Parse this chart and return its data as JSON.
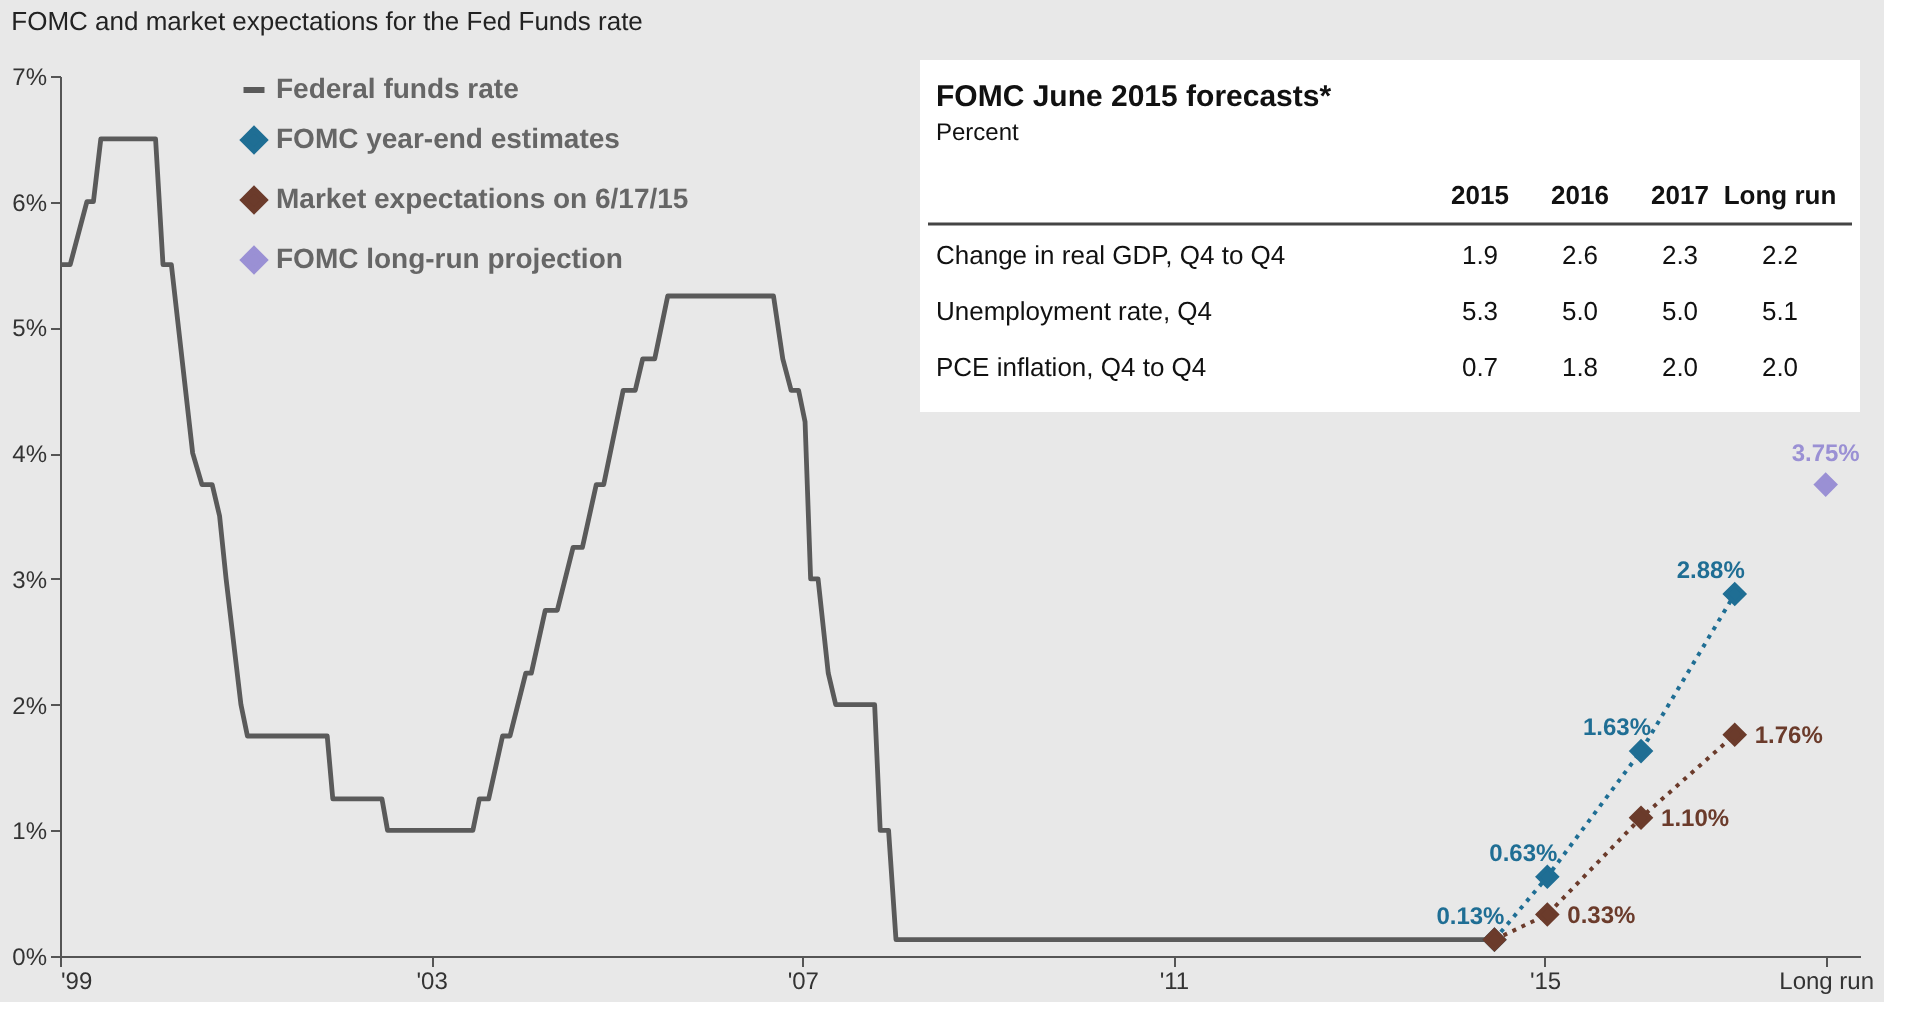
{
  "chart_data": {
    "type": "line",
    "title": "FOMC and market expectations for the Fed Funds rate",
    "x": [
      1999.0,
      1999.11,
      1999.29,
      1999.36,
      1999.44,
      2000.03,
      2000.11,
      2000.2,
      2000.43,
      2000.53,
      2000.64,
      2000.72,
      2000.79,
      2000.95,
      2001.02,
      2001.88,
      2001.94,
      2002.47,
      2002.53,
      2003.45,
      2003.52,
      2003.62,
      2003.77,
      2003.85,
      2004.02,
      2004.08,
      2004.23,
      2004.36,
      2004.53,
      2004.63,
      2004.78,
      2004.86,
      2005.07,
      2005.2,
      2005.28,
      2005.41,
      2005.55,
      2006.69,
      2006.79,
      2006.88,
      2006.96,
      2007.03,
      2007.09,
      2007.17,
      2007.28,
      2007.36,
      2007.78,
      2007.84,
      2007.93,
      2008.01,
      2014.46
    ],
    "series": [
      {
        "name": "Federal funds rate",
        "color": "#5a5a5a",
        "marker": "none",
        "line_style": "solid",
        "values": [
          5.5,
          5.5,
          6.0,
          6.0,
          6.5,
          6.5,
          5.5,
          5.5,
          4.0,
          3.75,
          3.75,
          3.5,
          3.0,
          2.0,
          1.75,
          1.75,
          1.25,
          1.25,
          1.0,
          1.0,
          1.25,
          1.25,
          1.75,
          1.75,
          2.25,
          2.25,
          2.75,
          2.75,
          3.25,
          3.25,
          3.75,
          3.75,
          4.5,
          4.5,
          4.75,
          4.75,
          5.25,
          5.25,
          4.75,
          4.5,
          4.5,
          4.25,
          3.0,
          3.0,
          2.25,
          2.0,
          2.0,
          1.0,
          1.0,
          0.13,
          0.13
        ]
      },
      {
        "name": "FOMC year-end estimates",
        "color": "#1f6e94",
        "type": "line",
        "marker": "diamond",
        "line_style": "dotted",
        "x": [
          2014.46,
          2015.03,
          2016.04,
          2017.05
        ],
        "values": [
          0.13,
          0.63,
          1.63,
          2.88
        ],
        "value_labels": [
          "0.13%",
          "0.63%",
          "1.63%",
          "2.88%"
        ]
      },
      {
        "name": "Market expectations on 6/17/15",
        "color": "#6b3b2b",
        "type": "line",
        "marker": "diamond",
        "line_style": "dotted",
        "x": [
          2014.46,
          2015.03,
          2016.04,
          2017.05
        ],
        "values": [
          0.13,
          0.33,
          1.1,
          1.76
        ],
        "value_labels": [
          null,
          "0.33%",
          "1.10%",
          "1.76%"
        ]
      },
      {
        "name": "FOMC long-run projection",
        "color": "#9a90d4",
        "type": "scatter",
        "marker": "diamond",
        "x": [
          2018.03
        ],
        "values": [
          3.75
        ],
        "value_labels": [
          "3.75%"
        ]
      }
    ],
    "xlim": [
      1999,
      2018.4
    ],
    "xticks": [
      {
        "value": 1999,
        "label": "'99"
      },
      {
        "value": 2003,
        "label": "'03"
      },
      {
        "value": 2007,
        "label": "'07"
      },
      {
        "value": 2011,
        "label": "'11"
      },
      {
        "value": 2015,
        "label": "'15"
      },
      {
        "value": 2018.03,
        "label": "Long run"
      }
    ],
    "ylim": [
      0,
      7
    ],
    "yticks": [
      {
        "value": 0,
        "label": "0%"
      },
      {
        "value": 1,
        "label": "1%"
      },
      {
        "value": 2,
        "label": "2%"
      },
      {
        "value": 3,
        "label": "3%"
      },
      {
        "value": 4,
        "label": "4%"
      },
      {
        "value": 5,
        "label": "5%"
      },
      {
        "value": 6,
        "label": "6%"
      },
      {
        "value": 7,
        "label": "7%"
      }
    ],
    "grid": false,
    "legend": "top left",
    "annotations": [
      "FOMC June 2015 forecasts*",
      "Percent",
      "2015",
      "2016",
      "2017",
      "Long run",
      "Change in real GDP, Q4 to Q4",
      "1.9",
      "2.6",
      "2.3",
      "2.2",
      "Unemployment rate, Q4",
      "5.3",
      "5.0",
      "5.0",
      "5.1",
      "PCE inflation, Q4 to Q4",
      "0.7",
      "1.8",
      "2.0",
      "2.0"
    ]
  }
}
